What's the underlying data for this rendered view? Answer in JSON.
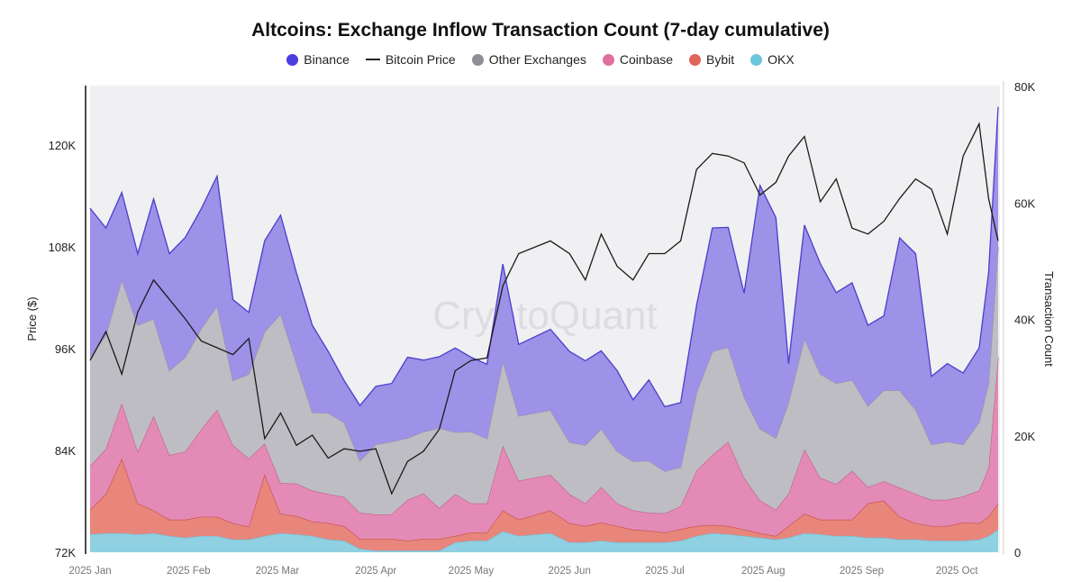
{
  "chart_data": {
    "type": "area",
    "title": "Altcoins: Exchange Inflow Transaction Count (7-day cumulative)",
    "watermark": "CryptoQuant",
    "ylabel_left": "Price ($)",
    "ylabel_right": "Transaction Count",
    "ylim_left": [
      72000,
      127000
    ],
    "ylim_right": [
      0,
      80000
    ],
    "yticks_left": [
      "72K",
      "84K",
      "96K",
      "108K",
      "120K"
    ],
    "yticks_right": [
      "0",
      "20K",
      "40K",
      "60K",
      "80K"
    ],
    "xticks": [
      "2025 Jan",
      "2025 Feb",
      "2025 Mar",
      "2025 Apr",
      "2025 May",
      "2025 Jun",
      "2025 Jul",
      "2025 Aug",
      "2025 Sep",
      "2025 Oct"
    ],
    "xtick_dates": [
      "2025-01-01",
      "2025-02-01",
      "2025-03-01",
      "2025-04-01",
      "2025-05-01",
      "2025-06-01",
      "2025-07-01",
      "2025-08-01",
      "2025-09-01",
      "2025-10-01"
    ],
    "xlim": [
      "2025-01-01",
      "2025-10-14"
    ],
    "grid": false,
    "legend_position": "top",
    "stacked": true,
    "x": [
      "2025-01-01",
      "2025-01-06",
      "2025-01-11",
      "2025-01-16",
      "2025-01-21",
      "2025-01-26",
      "2025-01-31",
      "2025-02-05",
      "2025-02-10",
      "2025-02-15",
      "2025-02-20",
      "2025-02-25",
      "2025-03-02",
      "2025-03-07",
      "2025-03-12",
      "2025-03-17",
      "2025-03-22",
      "2025-03-27",
      "2025-04-01",
      "2025-04-06",
      "2025-04-11",
      "2025-04-16",
      "2025-04-21",
      "2025-04-26",
      "2025-05-01",
      "2025-05-06",
      "2025-05-11",
      "2025-05-16",
      "2025-05-26",
      "2025-06-01",
      "2025-06-06",
      "2025-06-11",
      "2025-06-16",
      "2025-06-21",
      "2025-06-26",
      "2025-07-01",
      "2025-07-06",
      "2025-07-11",
      "2025-07-16",
      "2025-07-21",
      "2025-07-26",
      "2025-07-31",
      "2025-08-05",
      "2025-08-09",
      "2025-08-14",
      "2025-08-19",
      "2025-08-24",
      "2025-08-29",
      "2025-09-03",
      "2025-09-08",
      "2025-09-13",
      "2025-09-18",
      "2025-09-23",
      "2025-09-28",
      "2025-10-03",
      "2025-10-08",
      "2025-10-11",
      "2025-10-14"
    ],
    "legend": [
      {
        "name": "Binance",
        "color": "#4b3ee0",
        "kind": "dot"
      },
      {
        "name": "Bitcoin Price",
        "color": "#222222",
        "kind": "line"
      },
      {
        "name": "Other Exchanges",
        "color": "#8e8e96",
        "kind": "dot"
      },
      {
        "name": "Coinbase",
        "color": "#e06fa0",
        "kind": "dot"
      },
      {
        "name": "Bybit",
        "color": "#e0665a",
        "kind": "dot"
      },
      {
        "name": "OKX",
        "color": "#6cc6de",
        "kind": "dot"
      }
    ],
    "series": [
      {
        "name": "OKX",
        "axis": "right",
        "fill": "#8fd0e2",
        "stroke": "#7ab8cc",
        "values": [
          3100,
          3300,
          3300,
          3100,
          3300,
          2800,
          2500,
          2800,
          2800,
          2200,
          2200,
          2800,
          3300,
          3100,
          2800,
          2200,
          2000,
          600,
          300,
          300,
          300,
          300,
          300,
          1700,
          2000,
          2000,
          3600,
          2800,
          3300,
          1700,
          1700,
          2000,
          1700,
          1700,
          1700,
          1700,
          2000,
          2800,
          3300,
          3100,
          2800,
          2500,
          2200,
          2500,
          3300,
          3100,
          2800,
          2800,
          2500,
          2500,
          2200,
          2200,
          2000,
          2000,
          2000,
          2200,
          2800,
          3900
        ]
      },
      {
        "name": "Bybit",
        "axis": "right",
        "fill": "#e8867c",
        "stroke": "#c9504a",
        "values": [
          4200,
          6700,
          12800,
          5300,
          3900,
          2800,
          3100,
          3300,
          3300,
          2800,
          2200,
          10600,
          3300,
          3100,
          2500,
          2800,
          2500,
          1700,
          2000,
          2000,
          1700,
          2000,
          2000,
          1100,
          1400,
          1400,
          3600,
          2800,
          3900,
          3300,
          2800,
          3100,
          2800,
          2200,
          2000,
          1700,
          2000,
          1700,
          1400,
          1400,
          1100,
          800,
          600,
          2000,
          3300,
          2500,
          2800,
          2800,
          5900,
          6400,
          3900,
          2800,
          2500,
          2500,
          3100,
          2800,
          3300,
          4500
        ]
      },
      {
        "name": "Coinbase",
        "axis": "right",
        "fill": "#e38bb6",
        "stroke": "#c4608f",
        "values": [
          7500,
          7800,
          9500,
          8900,
          16200,
          11100,
          11700,
          15000,
          18400,
          13400,
          11700,
          5300,
          5300,
          5600,
          5300,
          5000,
          5000,
          4500,
          4200,
          4200,
          7000,
          7800,
          5300,
          7200,
          5000,
          5000,
          11100,
          6700,
          6100,
          5000,
          3900,
          6100,
          3900,
          3300,
          3100,
          3300,
          3900,
          9500,
          12000,
          14500,
          8900,
          5600,
          4500,
          5600,
          11100,
          7200,
          6100,
          8400,
          2800,
          3300,
          5000,
          5000,
          4500,
          4500,
          4500,
          5600,
          8400,
          25100
        ]
      },
      {
        "name": "Other Exchanges",
        "axis": "right",
        "fill": "#bebdc3",
        "stroke": "#9a99a3",
        "values": [
          18700,
          19500,
          21200,
          21700,
          16700,
          14500,
          16200,
          17300,
          17800,
          11100,
          14500,
          19200,
          29000,
          20600,
          13400,
          13900,
          12800,
          8900,
          12000,
          12500,
          10600,
          10600,
          13700,
          10600,
          12300,
          11100,
          14500,
          11100,
          11100,
          8900,
          10000,
          10000,
          8900,
          8400,
          8900,
          7200,
          6700,
          13400,
          17800,
          16200,
          13900,
          12300,
          12300,
          15600,
          19000,
          17800,
          17300,
          15600,
          13900,
          15600,
          16700,
          14500,
          9500,
          10000,
          8900,
          11700,
          14500,
          19000
        ]
      },
      {
        "name": "Binance",
        "axis": "right",
        "fill": "#9d91e8",
        "stroke": "#4a3fcc",
        "values": [
          25600,
          18400,
          15000,
          12300,
          20600,
          20100,
          20600,
          20600,
          22300,
          13900,
          10600,
          15600,
          17000,
          15600,
          15000,
          10600,
          7200,
          9500,
          10000,
          10000,
          13900,
          12300,
          12300,
          14500,
          12800,
          12800,
          16700,
          12300,
          13900,
          15600,
          14500,
          13400,
          13900,
          10600,
          13900,
          11100,
          11100,
          15000,
          21200,
          20600,
          17800,
          41800,
          37900,
          6700,
          19500,
          19000,
          15600,
          16700,
          13900,
          12800,
          26200,
          26800,
          11700,
          13400,
          12300,
          12800,
          19000,
          24000
        ]
      },
      {
        "name": "Bitcoin Price",
        "axis": "left",
        "type": "line",
        "stroke": "#1a1a1a",
        "values": [
          94600,
          98000,
          93000,
          100300,
          104100,
          101800,
          99500,
          96900,
          96100,
          95300,
          97200,
          85400,
          88400,
          84600,
          85800,
          83100,
          84200,
          83900,
          84200,
          78900,
          82700,
          83900,
          86500,
          93400,
          94600,
          94900,
          103400,
          107200,
          108700,
          107200,
          104100,
          109500,
          105700,
          104100,
          107200,
          107200,
          108700,
          117100,
          119000,
          118700,
          117900,
          114100,
          115600,
          118700,
          121000,
          113300,
          116000,
          110200,
          109500,
          111000,
          113700,
          116000,
          114800,
          109500,
          118700,
          122500,
          113700,
          108700
        ]
      }
    ]
  }
}
